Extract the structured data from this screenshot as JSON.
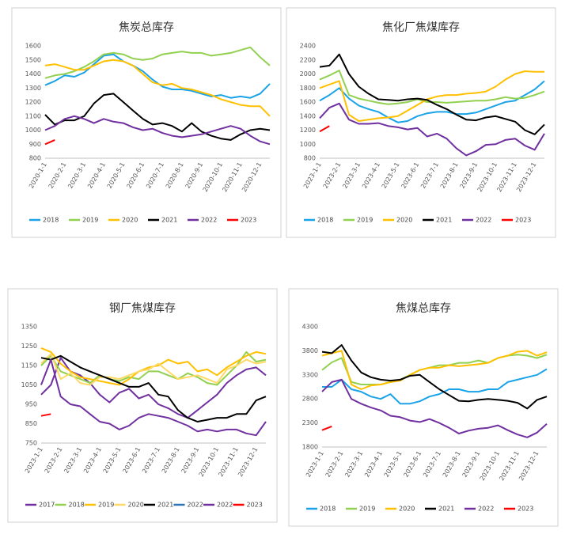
{
  "chart_data": [
    {
      "type": "line",
      "title": "焦炭总库存",
      "categories": [
        "2020-1-1",
        null,
        "2020-2-1",
        null,
        "2020-3-1",
        null,
        "2020-4-1",
        null,
        "2020-5-1",
        null,
        "2020-6-1",
        null,
        "2020-7-1",
        null,
        "2020-8-1",
        null,
        "2020-9-1",
        null,
        "2020-10-1",
        null,
        "2020-11-1",
        null,
        "2020-12-1",
        null
      ],
      "ylim": [
        800,
        1600
      ],
      "yticks": [
        800,
        900,
        1000,
        1100,
        1200,
        1300,
        1400,
        1500,
        1600
      ],
      "grid": false,
      "series": [
        {
          "name": "2018",
          "color": "#1aa3e8",
          "values": [
            1320,
            1350,
            1390,
            1380,
            1410,
            1470,
            1530,
            1540,
            1490,
            1460,
            1420,
            1360,
            1310,
            1290,
            1290,
            1280,
            1260,
            1240,
            1250,
            1230,
            1240,
            1230,
            1260,
            1330
          ]
        },
        {
          "name": "2019",
          "color": "#92d050",
          "values": [
            1370,
            1390,
            1400,
            1420,
            1450,
            1490,
            1540,
            1550,
            1540,
            1510,
            1500,
            1510,
            1540,
            1550,
            1560,
            1550,
            1550,
            1530,
            1540,
            1550,
            1570,
            1590,
            1520,
            1460
          ]
        },
        {
          "name": "2020",
          "color": "#ffc000",
          "values": [
            1460,
            1470,
            1450,
            1430,
            1430,
            1460,
            1490,
            1500,
            1490,
            1460,
            1400,
            1340,
            1320,
            1330,
            1300,
            1290,
            1270,
            1250,
            1220,
            1200,
            1180,
            1170,
            1170,
            1100
          ]
        },
        {
          "name": "2021",
          "color": "#000000",
          "values": [
            1110,
            1040,
            1070,
            1070,
            1100,
            1190,
            1250,
            1260,
            1200,
            1140,
            1080,
            1040,
            1050,
            1030,
            990,
            1050,
            990,
            960,
            940,
            930,
            970,
            1000,
            1010,
            1000
          ]
        },
        {
          "name": "2022",
          "color": "#7030a0",
          "values": [
            1000,
            1030,
            1080,
            1100,
            1080,
            1050,
            1080,
            1060,
            1050,
            1020,
            1000,
            1010,
            980,
            960,
            950,
            960,
            970,
            990,
            1010,
            1030,
            1010,
            960,
            920,
            900
          ]
        },
        {
          "name": "2023",
          "color": "#ff0000",
          "values": [
            900,
            930,
            null,
            null,
            null,
            null,
            null,
            null,
            null,
            null,
            null,
            null,
            null,
            null,
            null,
            null,
            null,
            null,
            null,
            null,
            null,
            null,
            null,
            null
          ]
        }
      ]
    },
    {
      "type": "line",
      "title": "焦化厂焦煤库存",
      "categories": [
        "2023-1-1",
        null,
        "2023-2-1",
        null,
        "2023-3-1",
        null,
        "2023-4-1",
        null,
        "2023-5-1",
        null,
        "2023-6-1",
        null,
        "2023-7-1",
        null,
        "2023-8-1",
        null,
        "2023-9-1",
        null,
        "2023-10-1",
        null,
        "2023-11-1",
        null,
        "2023-12-1",
        null
      ],
      "ylim": [
        800,
        2400
      ],
      "yticks": [
        800,
        1000,
        1200,
        1400,
        1600,
        1800,
        2000,
        2200,
        2400
      ],
      "grid": false,
      "series": [
        {
          "name": "2018",
          "color": "#1aa3e8",
          "values": [
            1620,
            1700,
            1800,
            1650,
            1550,
            1500,
            1460,
            1380,
            1310,
            1330,
            1400,
            1440,
            1460,
            1460,
            1430,
            1430,
            1450,
            1500,
            1550,
            1600,
            1620,
            1700,
            1780,
            1900
          ]
        },
        {
          "name": "2019",
          "color": "#92d050",
          "values": [
            1920,
            1980,
            2050,
            1700,
            1650,
            1620,
            1590,
            1570,
            1580,
            1600,
            1640,
            1600,
            1600,
            1590,
            1600,
            1610,
            1620,
            1620,
            1640,
            1670,
            1650,
            1660,
            1700,
            1750
          ]
        },
        {
          "name": "2020",
          "color": "#ffc000",
          "values": [
            1800,
            1850,
            1900,
            1420,
            1330,
            1350,
            1370,
            1380,
            1400,
            1480,
            1560,
            1640,
            1680,
            1700,
            1700,
            1720,
            1730,
            1750,
            1820,
            1920,
            2000,
            2040,
            2030,
            2030
          ]
        },
        {
          "name": "2021",
          "color": "#000000",
          "values": [
            2100,
            2120,
            2280,
            2000,
            1820,
            1720,
            1640,
            1630,
            1620,
            1640,
            1650,
            1630,
            1560,
            1500,
            1420,
            1350,
            1340,
            1380,
            1400,
            1360,
            1320,
            1200,
            1140,
            1280
          ]
        },
        {
          "name": "2022",
          "color": "#7030a0",
          "values": [
            1370,
            1520,
            1580,
            1350,
            1290,
            1290,
            1300,
            1260,
            1240,
            1210,
            1230,
            1110,
            1150,
            1080,
            940,
            840,
            900,
            990,
            1000,
            1060,
            1080,
            980,
            920,
            1150
          ]
        },
        {
          "name": "2023",
          "color": "#ff0000",
          "values": [
            1180,
            1260,
            null,
            null,
            null,
            null,
            null,
            null,
            null,
            null,
            null,
            null,
            null,
            null,
            null,
            null,
            null,
            null,
            null,
            null,
            null,
            null,
            null,
            null
          ]
        }
      ]
    },
    {
      "type": "line",
      "title": "钢厂焦煤库存",
      "categories": [
        "2023-1-1",
        null,
        "2023-2-1",
        null,
        "2023-3-1",
        null,
        "2023-4-1",
        null,
        "2023-5-1",
        null,
        "2023-6-1",
        null,
        "2023-7-1",
        null,
        "2023-8-1",
        null,
        "2023-9-1",
        null,
        "2023-10-1",
        null,
        "2023-11-1",
        null,
        "2023-12-1",
        null
      ],
      "ylim": [
        750,
        1350
      ],
      "yticks": [
        750,
        850,
        950,
        1050,
        1150,
        1250,
        1350
      ],
      "grid": false,
      "series": [
        {
          "name": "2017",
          "color": "#7030a0",
          "values": [
            1000,
            1050,
            1190,
            1120,
            1100,
            1060,
            1000,
            960,
            1010,
            1030,
            980,
            1000,
            950,
            930,
            900,
            880,
            920,
            960,
            1000,
            1060,
            1100,
            1130,
            1140,
            1100
          ]
        },
        {
          "name": "2018",
          "color": "#92d050",
          "values": [
            1150,
            1200,
            1120,
            1100,
            1080,
            1060,
            1100,
            1080,
            1070,
            1090,
            1080,
            1120,
            1120,
            1100,
            1080,
            1110,
            1090,
            1060,
            1050,
            1100,
            1150,
            1220,
            1170,
            1180
          ]
        },
        {
          "name": "2019",
          "color": "#ffc000",
          "values": [
            1240,
            1220,
            1160,
            1120,
            1090,
            1080,
            1070,
            1060,
            1050,
            1080,
            1120,
            1140,
            1150,
            1180,
            1160,
            1170,
            1120,
            1130,
            1100,
            1140,
            1170,
            1200,
            1220,
            1210
          ]
        },
        {
          "name": "2020",
          "color": "#ffd966",
          "values": [
            1160,
            1210,
            1080,
            1110,
            1060,
            1050,
            1090,
            1090,
            1080,
            1100,
            1120,
            1130,
            1160,
            1120,
            1080,
            1090,
            1100,
            1080,
            1060,
            1130,
            1150,
            1180,
            1160,
            1170
          ]
        },
        {
          "name": "2021",
          "color": "#000000",
          "values": [
            1190,
            1180,
            1200,
            1170,
            1140,
            1120,
            1100,
            1080,
            1060,
            1040,
            1040,
            1060,
            1000,
            990,
            920,
            880,
            860,
            870,
            880,
            880,
            900,
            900,
            970,
            990
          ]
        },
        {
          "name": "2022",
          "color": "#2e75b6",
          "values": [
            null,
            null,
            null,
            null,
            null,
            null,
            null,
            null,
            null,
            null,
            null,
            null,
            null,
            null,
            null,
            null,
            null,
            null,
            null,
            null,
            null,
            null,
            null,
            null
          ]
        },
        {
          "name": "2022",
          "color": "#7030a0",
          "values": [
            1050,
            1180,
            990,
            950,
            940,
            900,
            860,
            850,
            820,
            840,
            880,
            900,
            890,
            880,
            860,
            840,
            810,
            820,
            810,
            820,
            820,
            800,
            790,
            860
          ]
        },
        {
          "name": "2023",
          "color": "#ff0000",
          "values": [
            890,
            900,
            null,
            null,
            null,
            null,
            null,
            null,
            null,
            null,
            null,
            null,
            null,
            null,
            null,
            null,
            null,
            null,
            null,
            null,
            null,
            null,
            null,
            null
          ]
        }
      ]
    },
    {
      "type": "line",
      "title": "焦煤总库存",
      "categories": [
        "2023-1-1",
        null,
        "2023-2-1",
        null,
        "2023-3-1",
        null,
        "2023-4-1",
        null,
        "2023-5-1",
        null,
        "2023-6-1",
        null,
        "2023-7-1",
        null,
        "2023-8-1",
        null,
        "2023-9-1",
        null,
        "2023-10-1",
        null,
        "2023-11-1",
        null,
        "2023-12-1",
        null
      ],
      "ylim": [
        1800,
        4300
      ],
      "yticks": [
        1800,
        2300,
        2800,
        3300,
        3800,
        4300
      ],
      "grid": false,
      "series": [
        {
          "name": "2018",
          "color": "#1aa3e8",
          "values": [
            3050,
            3050,
            3200,
            3000,
            2950,
            2850,
            2800,
            2900,
            2700,
            2700,
            2750,
            2850,
            2900,
            3000,
            3000,
            2950,
            2950,
            3000,
            3000,
            3150,
            3200,
            3250,
            3300,
            3420
          ]
        },
        {
          "name": "2019",
          "color": "#92d050",
          "values": [
            3400,
            3560,
            3650,
            3150,
            3100,
            3100,
            3100,
            3150,
            3200,
            3300,
            3400,
            3450,
            3500,
            3500,
            3550,
            3550,
            3600,
            3550,
            3650,
            3700,
            3720,
            3700,
            3650,
            3720
          ]
        },
        {
          "name": "2020",
          "color": "#ffc000",
          "values": [
            3700,
            3750,
            3800,
            3100,
            3000,
            3080,
            3100,
            3150,
            3180,
            3300,
            3400,
            3450,
            3450,
            3500,
            3480,
            3500,
            3520,
            3550,
            3650,
            3700,
            3780,
            3800,
            3700,
            3770
          ]
        },
        {
          "name": "2021",
          "color": "#000000",
          "values": [
            3780,
            3750,
            3920,
            3600,
            3350,
            3250,
            3200,
            3180,
            3200,
            3280,
            3300,
            3150,
            3000,
            2880,
            2760,
            2750,
            2780,
            2800,
            2780,
            2760,
            2720,
            2600,
            2780,
            2850
          ]
        },
        {
          "name": "2022",
          "color": "#7030a0",
          "values": [
            2950,
            3150,
            3200,
            2800,
            2700,
            2620,
            2560,
            2450,
            2420,
            2350,
            2320,
            2380,
            2300,
            2200,
            2080,
            2140,
            2180,
            2200,
            2250,
            2150,
            2060,
            2000,
            2100,
            2280
          ]
        },
        {
          "name": "2023",
          "color": "#ff0000",
          "values": [
            2150,
            2230,
            null,
            null,
            null,
            null,
            null,
            null,
            null,
            null,
            null,
            null,
            null,
            null,
            null,
            null,
            null,
            null,
            null,
            null,
            null,
            null,
            null,
            null
          ]
        }
      ]
    }
  ]
}
